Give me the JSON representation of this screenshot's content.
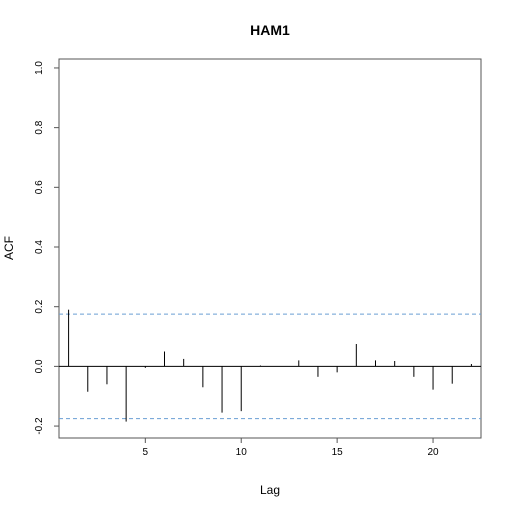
{
  "chart_data": {
    "type": "bar",
    "title": "HAM1",
    "xlabel": "Lag",
    "ylabel": "ACF",
    "xlim": [
      0.5,
      22.5
    ],
    "ylim": [
      -0.24,
      1.03
    ],
    "x_ticks": [
      5,
      10,
      15,
      20
    ],
    "y_ticks": [
      -0.2,
      0.0,
      0.2,
      0.4,
      0.6,
      0.8,
      1.0
    ],
    "y_tick_labels": [
      "-0.2",
      "0.0",
      "0.2",
      "0.4",
      "0.6",
      "0.8",
      "1.0"
    ],
    "lags": [
      1,
      2,
      3,
      4,
      5,
      6,
      7,
      8,
      9,
      10,
      11,
      12,
      13,
      14,
      15,
      16,
      17,
      18,
      19,
      20,
      21,
      22
    ],
    "values": [
      0.19,
      -0.085,
      -0.06,
      -0.185,
      -0.005,
      0.05,
      0.025,
      -0.07,
      -0.155,
      -0.15,
      0.003,
      0.0,
      0.02,
      -0.035,
      -0.02,
      0.075,
      0.02,
      0.018,
      -0.035,
      -0.078,
      -0.058,
      0.008
    ],
    "confidence_bound": 0.175,
    "colors": {
      "bars": "#000000",
      "ci_lines": "#6a9fd4",
      "frame": "#555555"
    },
    "grid": false
  }
}
